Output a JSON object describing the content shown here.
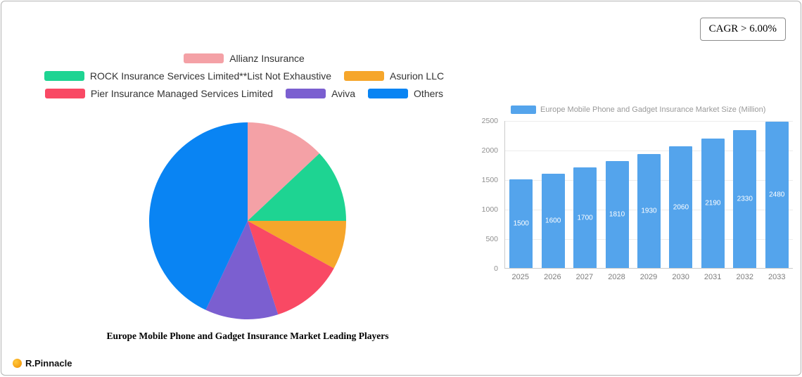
{
  "cagr_badge": "CAGR > 6.00%",
  "brand": "R.Pinnacle",
  "chart_data": [
    {
      "type": "pie",
      "title": "Europe Mobile Phone and Gadget Insurance Market Leading Players",
      "legend_position": "top",
      "legend_rows": [
        [
          0
        ],
        [
          1,
          2
        ],
        [
          3,
          4,
          5
        ]
      ],
      "slices": [
        {
          "label": "Allianz Insurance",
          "value": 13,
          "color": "#F4A1A6"
        },
        {
          "label": "ROCK Insurance Services Limited**List Not Exhaustive",
          "value": 12,
          "color": "#1ED492"
        },
        {
          "label": "Asurion LLC",
          "value": 8,
          "color": "#F6A62B"
        },
        {
          "label": "Pier Insurance Managed Services Limited",
          "value": 12,
          "color": "#F94964"
        },
        {
          "label": "Aviva",
          "value": 12,
          "color": "#7B5FD0"
        },
        {
          "label": "Others",
          "value": 43,
          "color": "#0984F3"
        }
      ]
    },
    {
      "type": "bar",
      "legend": "Europe Mobile Phone and Gadget Insurance Market Size (Million)",
      "categories": [
        "2025",
        "2026",
        "2027",
        "2028",
        "2029",
        "2030",
        "2031",
        "2032",
        "2033"
      ],
      "values": [
        1500,
        1600,
        1700,
        1810,
        1930,
        2060,
        2190,
        2330,
        2480
      ],
      "ylim": [
        0,
        2500
      ],
      "yticks": [
        0,
        500,
        1000,
        1500,
        2000,
        2500
      ],
      "grid": true,
      "bar_color": "#54A4EC",
      "value_labels": "inside-white"
    }
  ]
}
